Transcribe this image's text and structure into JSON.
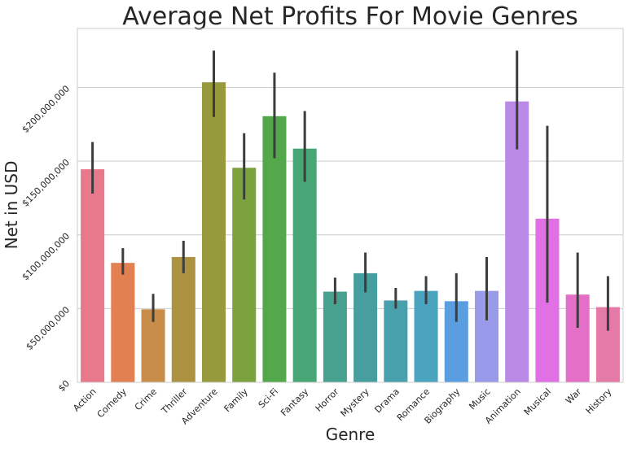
{
  "chart_data": {
    "type": "bar",
    "title": "Average Net Profits For Movie Genres",
    "xlabel": "Genre",
    "ylabel": "Net in USD",
    "ylim": [
      0,
      240000000
    ],
    "yticks": [
      0,
      50000000,
      100000000,
      150000000,
      200000000
    ],
    "ytick_labels": [
      "$0",
      "$50,000,000",
      "$100,000,000",
      "$150,000,000",
      "$200,000,000"
    ],
    "grid": "horizontal",
    "categories": [
      "Action",
      "Comedy",
      "Crime",
      "Thriller",
      "Adventure",
      "Family",
      "Sci-Fi",
      "Fantasy",
      "Horror",
      "Mystery",
      "Drama",
      "Romance",
      "Biography",
      "Music",
      "Animation",
      "Musical",
      "War",
      "History"
    ],
    "values": [
      144500000,
      81000000,
      49500000,
      85000000,
      203500000,
      145500000,
      180500000,
      158500000,
      61500000,
      74000000,
      55500000,
      62000000,
      55000000,
      62000000,
      190500000,
      111000000,
      59500000,
      51000000
    ],
    "error_low": [
      128000000,
      73000000,
      41000000,
      74000000,
      180000000,
      124000000,
      152000000,
      136000000,
      53000000,
      61000000,
      50000000,
      53000000,
      41000000,
      42000000,
      158000000,
      54000000,
      37000000,
      35000000
    ],
    "error_high": [
      163000000,
      91000000,
      60000000,
      96000000,
      225000000,
      169000000,
      210000000,
      184000000,
      71000000,
      88000000,
      64000000,
      72000000,
      74000000,
      85000000,
      225000000,
      174000000,
      88000000,
      72000000
    ],
    "colors": [
      "#e8788c",
      "#e38051",
      "#c98d4a",
      "#ad9341",
      "#969a3c",
      "#7ba23d",
      "#52a84a",
      "#48a576",
      "#46a18f",
      "#479e9e",
      "#49a0ad",
      "#4aa3bf",
      "#5a9ee0",
      "#9a9aeb",
      "#b98ae6",
      "#e070e3",
      "#e36fc6",
      "#e47aa8"
    ]
  }
}
